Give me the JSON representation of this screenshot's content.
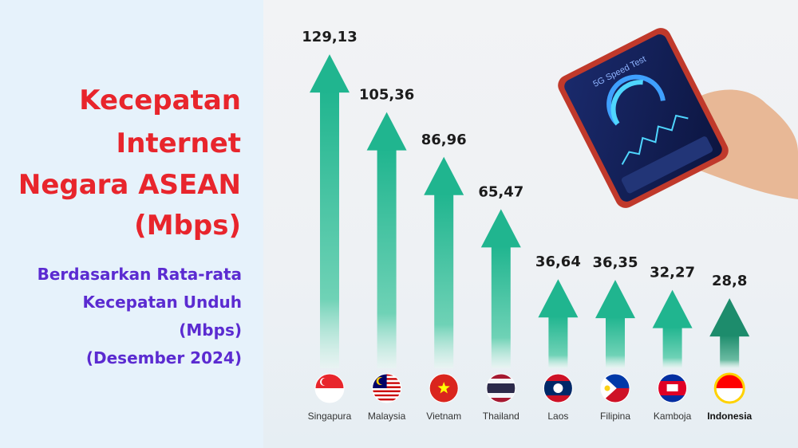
{
  "title_lines": [
    "Kecepatan",
    "Internet",
    "Negara ASEAN",
    "(Mbps)"
  ],
  "subtitle_lines": [
    "Berdasarkan Rata-rata",
    "Kecepatan Unduh",
    "(Mbps)",
    "(Desember 2024)"
  ],
  "phone": {
    "app_title": "5G Speed Test"
  },
  "colors": {
    "title": "#e8252c",
    "subtitle": "#5b2bd1",
    "arrow": "#20b58f",
    "arrow_highlight": "#1d8c6c"
  },
  "chart_data": {
    "type": "bar",
    "title": "Kecepatan Internet Negara ASEAN (Mbps)",
    "subtitle": "Berdasarkan Rata-rata Kecepatan Unduh (Mbps) (Desember 2024)",
    "categories": [
      "Singapura",
      "Malaysia",
      "Vietnam",
      "Thailand",
      "Laos",
      "Filipina",
      "Kamboja",
      "Indonesia"
    ],
    "values": [
      129.13,
      105.36,
      86.96,
      65.47,
      36.64,
      36.35,
      32.27,
      28.8
    ],
    "value_labels": [
      "129,13",
      "105,36",
      "86,96",
      "65,47",
      "36,64",
      "36,35",
      "32,27",
      "28,8"
    ],
    "highlight": "Indonesia",
    "mark": "arrow",
    "flags": [
      "singapore-flag",
      "malaysia-flag",
      "vietnam-flag",
      "thailand-flag",
      "laos-flag",
      "philippines-flag",
      "cambodia-flag",
      "indonesia-flag"
    ]
  }
}
